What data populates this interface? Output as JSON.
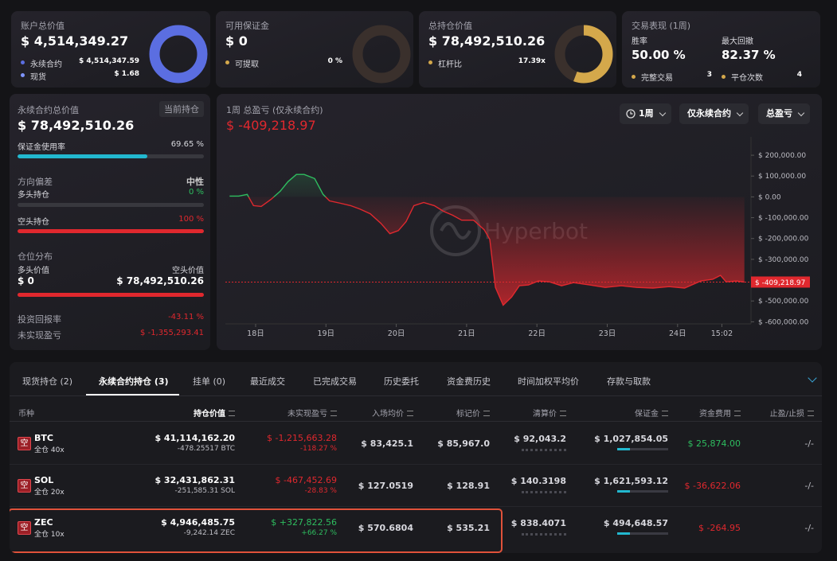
{
  "top_cards": {
    "account": {
      "title": "账户总价值",
      "value": "$ 4,514,349.27",
      "items": [
        {
          "name": "永续合约",
          "value": "$ 4,514,347.59"
        },
        {
          "name": "现货",
          "value": "$ 1.68"
        }
      ]
    },
    "margin": {
      "title": "可用保证金",
      "value": "$ 0",
      "items": [
        {
          "name": "可提取",
          "value": "0 %"
        }
      ]
    },
    "holdings": {
      "title": "总持仓价值",
      "value": "$ 78,492,510.26",
      "items": [
        {
          "name": "杠杆比",
          "value": "17.39x"
        }
      ]
    },
    "performance": {
      "title": "交易表现 (1周)",
      "stats": [
        {
          "name": "胜率",
          "value": "50.00 %"
        },
        {
          "name": "最大回撤",
          "value": "82.37 %"
        }
      ],
      "items": [
        {
          "name": "完整交易",
          "value": "3"
        },
        {
          "name": "平仓次数",
          "value": "4"
        }
      ]
    }
  },
  "summary": {
    "title": "永续合约总价值",
    "badge": "当前持仓",
    "value": "$ 78,492,510.26",
    "margin_usage": {
      "label": "保证金使用率",
      "value": 69.65,
      "value_label": "69.65 %"
    },
    "bias": {
      "label": "方向偏差",
      "value": "中性"
    },
    "long": {
      "label": "多头持仓",
      "value": 0,
      "value_label": "0 %"
    },
    "short": {
      "label": "空头持仓",
      "value": 100,
      "value_label": "100 %"
    },
    "distribution": {
      "label": "仓位分布",
      "long_label": "多头价值",
      "short_label": "空头价值",
      "long_value": "$ 0",
      "short_value": "$ 78,492,510.26"
    },
    "roi": {
      "label": "投资回报率",
      "value": "-43.11 %"
    },
    "unrealized": {
      "label": "未实现盈亏",
      "value": "$ -1,355,293.41"
    }
  },
  "pnl_chart": {
    "type": "line",
    "title": "1周 总盈亏 (仅永续合约)",
    "current": {
      "value": -409218.97,
      "label": "$ -409,218.97"
    },
    "controls": [
      "1周",
      "仅永续合约",
      "总盈亏"
    ],
    "watermark": "Hyperbot",
    "x": [
      17.63,
      17.76,
      17.88,
      17.97,
      18.08,
      18.22,
      18.35,
      18.46,
      18.58,
      18.69,
      18.84,
      18.96,
      19.05,
      19.21,
      19.35,
      19.48,
      19.63,
      19.78,
      19.91,
      20.03,
      20.14,
      20.25,
      20.39,
      20.54,
      20.67,
      20.8,
      20.93,
      21.1,
      21.25,
      21.33,
      21.41,
      21.52,
      21.64,
      21.75,
      21.88,
      22.02,
      22.18,
      22.35,
      22.52,
      22.75,
      22.97,
      23.2,
      23.42,
      23.65,
      23.88,
      24.1,
      24.33,
      24.5,
      24.61,
      24.69,
      24.84,
      24.95
    ],
    "values": [
      4000,
      4000,
      12000,
      -42000,
      -46000,
      -12000,
      27000,
      73000,
      108000,
      108000,
      88000,
      12000,
      -19000,
      -31000,
      -42000,
      -58000,
      -81000,
      -127000,
      -177000,
      -162000,
      -119000,
      -42000,
      -27000,
      -42000,
      -69000,
      -88000,
      -112000,
      -112000,
      -158000,
      -204000,
      -435000,
      -520000,
      -481000,
      -427000,
      -423000,
      -404000,
      -408000,
      -427000,
      -412000,
      -423000,
      -435000,
      -427000,
      -435000,
      -438000,
      -431000,
      -438000,
      -404000,
      -396000,
      -377000,
      -408000,
      -404000,
      -409218.97
    ],
    "xlim": [
      17.57,
      25.01
    ],
    "ylim": [
      -610000,
      250000
    ],
    "xticks": [
      {
        "value": 18,
        "label": "18日"
      },
      {
        "value": 19,
        "label": "19日"
      },
      {
        "value": 20,
        "label": "20日"
      },
      {
        "value": 21,
        "label": "21日"
      },
      {
        "value": 22,
        "label": "22日"
      },
      {
        "value": 23,
        "label": "23日"
      },
      {
        "value": 24,
        "label": "24日"
      },
      {
        "value": 24.63,
        "label": "15:02"
      }
    ],
    "yticks": [
      {
        "value": 200000,
        "label": "$ 200,000.00"
      },
      {
        "value": 100000,
        "label": "$ 100,000.00"
      },
      {
        "value": 0,
        "label": "$ 0.00"
      },
      {
        "value": -100000,
        "label": "$ -100,000.00"
      },
      {
        "value": -200000,
        "label": "$ -200,000.00"
      },
      {
        "value": -300000,
        "label": "$ -300,000.00"
      },
      {
        "value": -400000,
        "label": "$ -400,000.00"
      },
      {
        "value": -500000,
        "label": "$ -500,000.00"
      },
      {
        "value": -600000,
        "label": "$ -600,000.00"
      }
    ],
    "up_color": "#2ebd5f",
    "down_color": "#e0282e"
  },
  "positions": {
    "tabs": [
      "现货持仓 (2)",
      "永续合约持仓 (3)",
      "挂单 (0)",
      "最近成交",
      "已完成交易",
      "历史委托",
      "资金费历史",
      "时间加权平均价",
      "存款与取款"
    ],
    "active_tab": 1,
    "columns": [
      "币种",
      "持仓价值",
      "未实现盈亏",
      "入场均价",
      "标记价",
      "清算价",
      "保证金",
      "资金费用",
      "止盈/止损"
    ],
    "highlight_row": 2,
    "rows": [
      {
        "side": "空",
        "coin": "BTC",
        "mode": "全仓 40x",
        "value": "$ 41,114,162.20",
        "size": "-478.25517 BTC",
        "pnl": "$ -1,215,663.28",
        "pnl_pct": "-118.27 %",
        "pnl_color": "#e0282e",
        "entry": "$ 83,425.1",
        "mark": "$ 85,967.0",
        "liq": "$ 92,043.2",
        "margin": "$ 1,027,854.05",
        "funding": "$ 25,874.00",
        "funding_color": "#2ebd5f",
        "tpsl": "-/-"
      },
      {
        "side": "空",
        "coin": "SOL",
        "mode": "全仓 20x",
        "value": "$ 32,431,862.31",
        "size": "-251,585.31 SOL",
        "pnl": "$ -467,452.69",
        "pnl_pct": "-28.83 %",
        "pnl_color": "#e0282e",
        "entry": "$ 127.0519",
        "mark": "$ 128.91",
        "liq": "$ 140.3198",
        "margin": "$ 1,621,593.12",
        "funding": "$ -36,622.06",
        "funding_color": "#e0282e",
        "tpsl": "-/-"
      },
      {
        "side": "空",
        "coin": "ZEC",
        "mode": "全仓 10x",
        "value": "$ 4,946,485.75",
        "size": "-9,242.14 ZEC",
        "pnl": "$ +327,822.56",
        "pnl_pct": "+66.27 %",
        "pnl_color": "#2ebd5f",
        "entry": "$ 570.6804",
        "mark": "$ 535.21",
        "liq": "$ 838.4071",
        "margin": "$ 494,648.57",
        "funding": "$ -264.95",
        "funding_color": "#e0282e",
        "tpsl": "-/-"
      }
    ]
  }
}
